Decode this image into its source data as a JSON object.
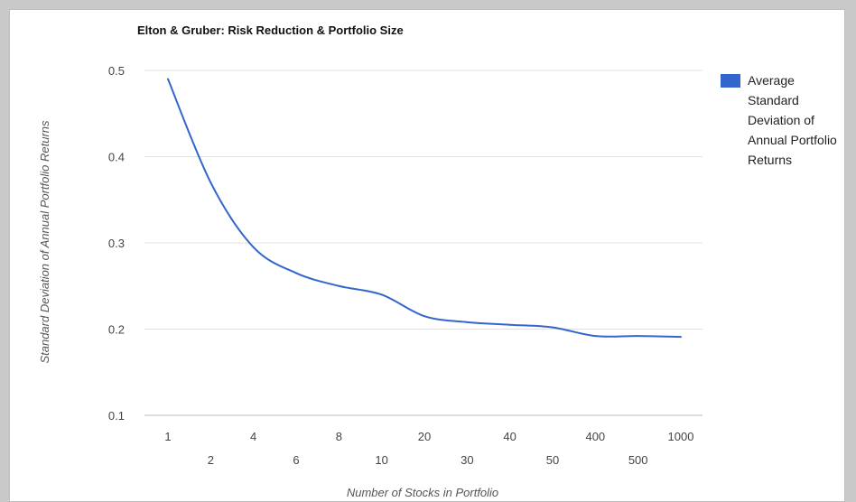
{
  "chart_data": {
    "type": "line",
    "title": "Elton & Gruber: Risk Reduction & Portfolio Size",
    "xlabel": "Number of Stocks in Portfolio",
    "ylabel": "Standard Deviation of Annual Portfolio Returns",
    "categories": [
      "1",
      "2",
      "4",
      "6",
      "8",
      "10",
      "20",
      "30",
      "40",
      "50",
      "400",
      "500",
      "1000"
    ],
    "series": [
      {
        "name": "Average Standard Deviation of Annual Portfolio Returns",
        "values": [
          0.49,
          0.37,
          0.295,
          0.265,
          0.25,
          0.24,
          0.215,
          0.208,
          0.205,
          0.202,
          0.192,
          0.192,
          0.191
        ]
      }
    ],
    "yticks": [
      "0.5",
      "0.4",
      "0.3",
      "0.2",
      "0.1"
    ],
    "ylim": [
      0.1,
      0.5
    ],
    "grid": true,
    "legend": "right",
    "colors": {
      "series": "#3366cc",
      "grid": "#e0e0e0"
    }
  }
}
